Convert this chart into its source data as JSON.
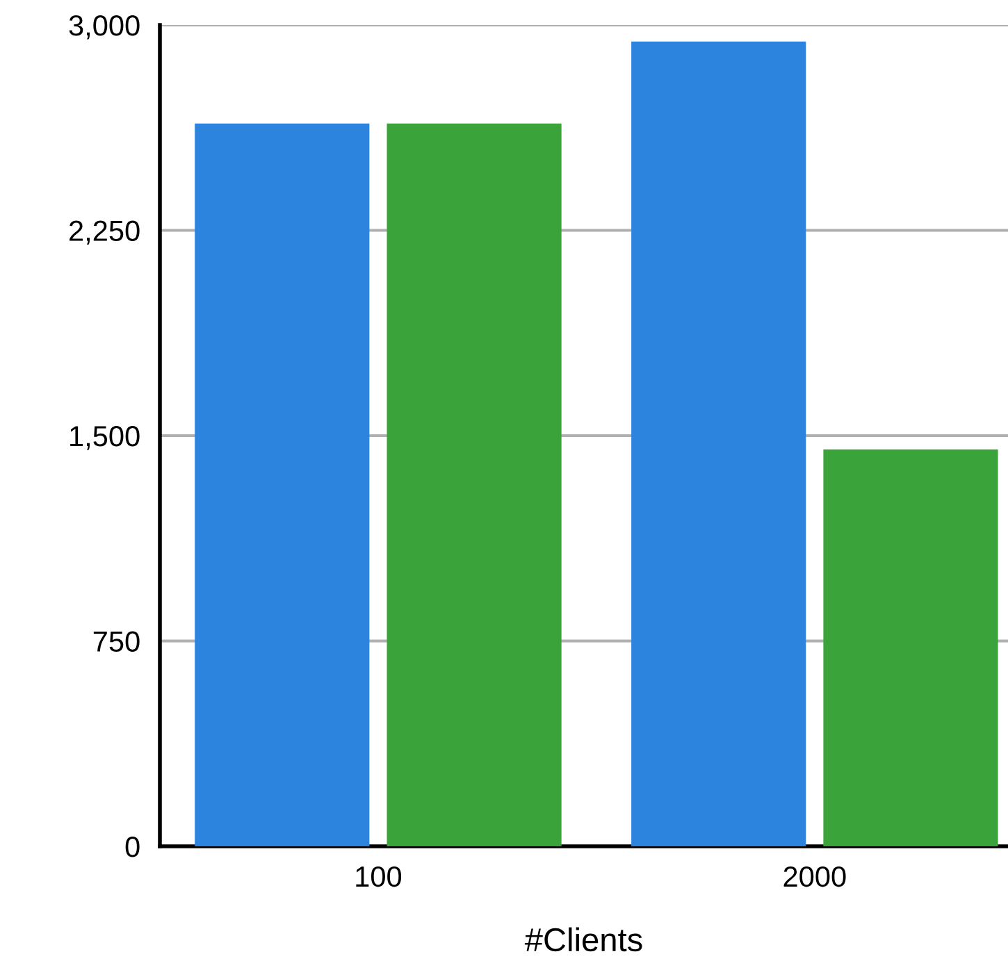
{
  "chart_data": {
    "type": "bar",
    "xlabel": "#Clients",
    "categories": [
      "100",
      "2000"
    ],
    "series": [
      {
        "color": "#2d84de",
        "values": [
          2640,
          2940
        ]
      },
      {
        "color": "#3aa33a",
        "values": [
          2640,
          1450
        ]
      }
    ],
    "ylim": [
      0,
      3000
    ],
    "yticks": [
      {
        "value": 0,
        "label": "0"
      },
      {
        "value": 750,
        "label": "750"
      },
      {
        "value": 1500,
        "label": "1,500"
      },
      {
        "value": 2250,
        "label": "2,250"
      },
      {
        "value": 3000,
        "label": "3,000"
      }
    ],
    "grid": "y",
    "legend": false
  }
}
